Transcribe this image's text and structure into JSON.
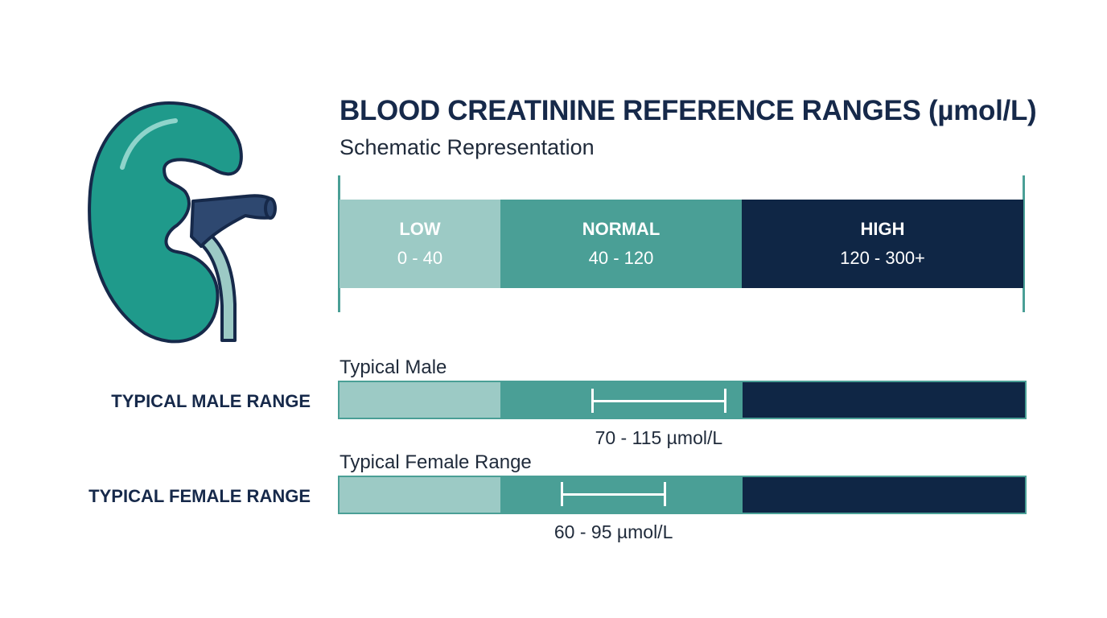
{
  "title": "BLOOD CREATININE REFERENCE RANGES (µmol/L)",
  "subtitle": "Schematic Representation",
  "scale": {
    "min": 0,
    "max": 300
  },
  "colors": {
    "low": "#9ccac5",
    "normal": "#4a9f96",
    "high": "#0f2645",
    "title": "#16294a"
  },
  "segments": [
    {
      "name": "LOW",
      "range": "0 - 40",
      "from": 0,
      "to": 40
    },
    {
      "name": "NORMAL",
      "range": "40 - 120",
      "from": 40,
      "to": 120
    },
    {
      "name": "HIGH",
      "range": "120 - 300+",
      "from": 120,
      "to": 300
    }
  ],
  "rows": [
    {
      "label": "TYPICAL MALE RANGE",
      "caption": "Typical Male",
      "value_label": "70 - 115 µmol/L",
      "from": 70,
      "to": 115
    },
    {
      "label": "TYPICAL FEMALE RANGE",
      "caption": "Typical Female Range",
      "value_label": "60 - 95 µmol/L",
      "from": 60,
      "to": 95
    }
  ],
  "icon": "kidney-icon"
}
